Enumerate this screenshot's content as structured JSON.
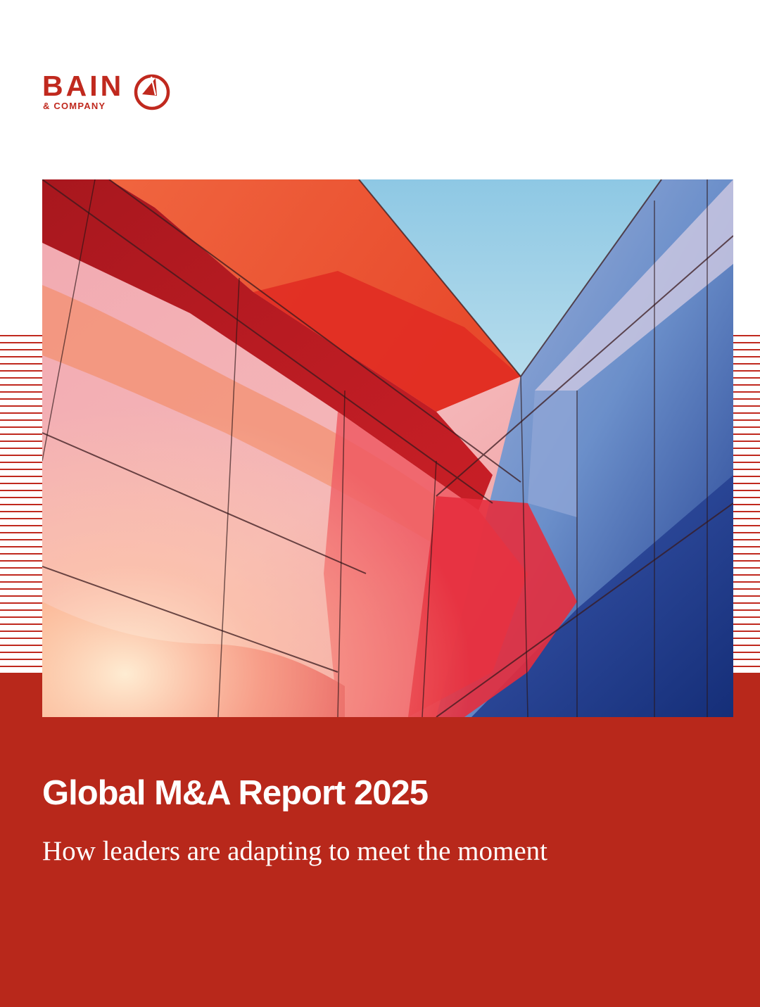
{
  "brand": {
    "name": "BAIN",
    "sub": "& COMPANY",
    "color": "#c0291e",
    "icon": "compass-logo-icon"
  },
  "cover": {
    "title": "Global M&A Report 2025",
    "subtitle": "How leaders are adapting to meet the moment",
    "band_color": "#b8281b",
    "image_icon": "glass-facade-photo"
  }
}
